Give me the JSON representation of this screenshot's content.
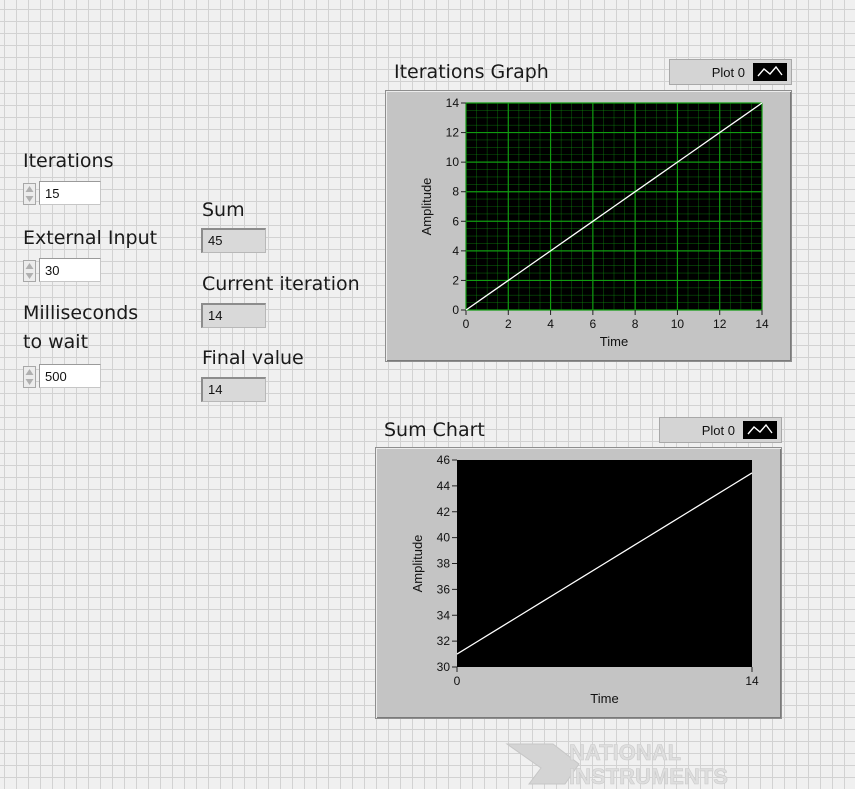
{
  "controls": {
    "iterations": {
      "label": "Iterations",
      "value": "15"
    },
    "external_input": {
      "label": "External Input",
      "value": "30"
    },
    "ms_wait": {
      "label_line1": "Milliseconds",
      "label_line2": "to wait",
      "value": "500"
    }
  },
  "indicators": {
    "sum": {
      "label": "Sum",
      "value": "45"
    },
    "current_iteration": {
      "label": "Current iteration",
      "value": "14"
    },
    "final_value": {
      "label": "Final value",
      "value": "14"
    }
  },
  "iterations_graph": {
    "title": "Iterations Graph",
    "legend_label": "Plot 0"
  },
  "sum_chart": {
    "title": "Sum Chart",
    "legend_label": "Plot 0"
  },
  "logo": {
    "line1": "NATIONAL",
    "line2": "INSTRUMENTS"
  },
  "colors": {
    "graph_grid": "#109c10",
    "plot_line": "#ffffff",
    "plot_background": "#000000"
  },
  "chart_data": [
    {
      "type": "line",
      "title": "Iterations Graph",
      "xlabel": "Time",
      "ylabel": "Amplitude",
      "xlim": [
        0,
        14
      ],
      "ylim": [
        0,
        14
      ],
      "x_ticks": [
        "0",
        "2",
        "4",
        "6",
        "8",
        "10",
        "12",
        "14"
      ],
      "y_ticks": [
        "0",
        "2",
        "4",
        "6",
        "8",
        "10",
        "12",
        "14"
      ],
      "grid": true,
      "series": [
        {
          "name": "Plot 0",
          "x": [
            0,
            1,
            2,
            3,
            4,
            5,
            6,
            7,
            8,
            9,
            10,
            11,
            12,
            13,
            14
          ],
          "y": [
            0,
            1,
            2,
            3,
            4,
            5,
            6,
            7,
            8,
            9,
            10,
            11,
            12,
            13,
            14
          ]
        }
      ]
    },
    {
      "type": "line",
      "title": "Sum Chart",
      "xlabel": "Time",
      "ylabel": "Amplitude",
      "xlim": [
        0,
        14
      ],
      "ylim": [
        30,
        46
      ],
      "x_ticks": [
        "0",
        "14"
      ],
      "y_ticks": [
        "30",
        "32",
        "34",
        "36",
        "38",
        "40",
        "42",
        "44",
        "46"
      ],
      "grid": false,
      "series": [
        {
          "name": "Plot 0",
          "x": [
            0,
            1,
            2,
            3,
            4,
            5,
            6,
            7,
            8,
            9,
            10,
            11,
            12,
            13,
            14
          ],
          "y": [
            31,
            32,
            33,
            34,
            35,
            36,
            37,
            38,
            39,
            40,
            41,
            42,
            43,
            44,
            45
          ]
        }
      ]
    }
  ]
}
